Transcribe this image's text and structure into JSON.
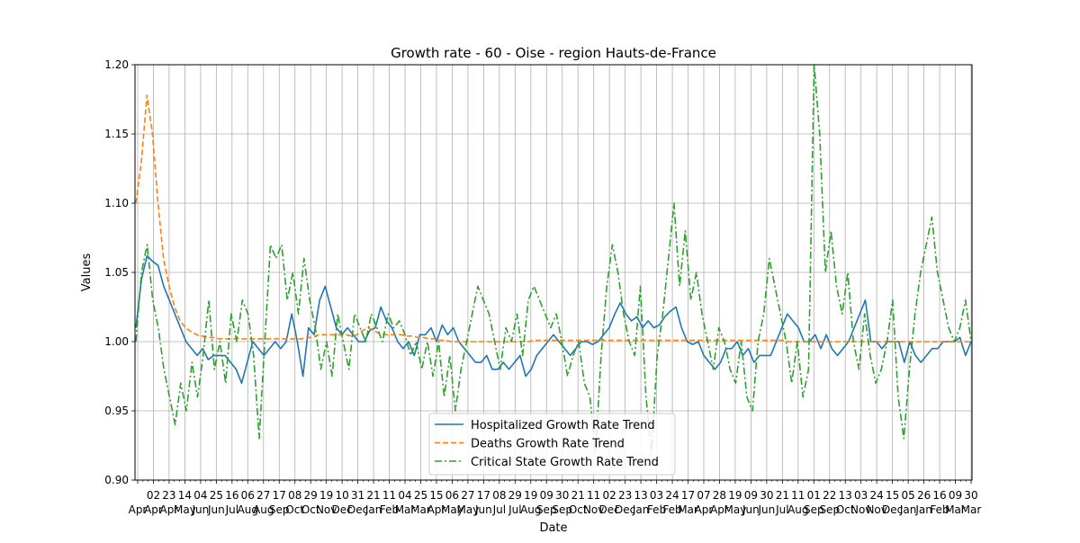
{
  "chart_data": {
    "type": "line",
    "title": "Growth rate - 60 - Oise - region Hauts-de-France",
    "xlabel": "Date",
    "ylabel": "Values",
    "ylim": [
      0.9,
      1.2
    ],
    "yticks": [
      "0.90",
      "0.95",
      "1.00",
      "1.05",
      "1.10",
      "1.15",
      "1.20"
    ],
    "grid": true,
    "legend_position": "bottom-center",
    "x_tick_labels": [
      {
        "day": "",
        "month": "Apr"
      },
      {
        "day": "02",
        "month": "Apr"
      },
      {
        "day": "23",
        "month": "Apr"
      },
      {
        "day": "14",
        "month": "May"
      },
      {
        "day": "04",
        "month": "Jun"
      },
      {
        "day": "25",
        "month": "Jun"
      },
      {
        "day": "16",
        "month": "Jul"
      },
      {
        "day": "06",
        "month": "Aug"
      },
      {
        "day": "27",
        "month": "Aug"
      },
      {
        "day": "17",
        "month": "Sep"
      },
      {
        "day": "08",
        "month": "Oct"
      },
      {
        "day": "29",
        "month": "Oct"
      },
      {
        "day": "19",
        "month": "Nov"
      },
      {
        "day": "10",
        "month": "Dec"
      },
      {
        "day": "31",
        "month": "Dec"
      },
      {
        "day": "21",
        "month": "Jan"
      },
      {
        "day": "11",
        "month": "Feb"
      },
      {
        "day": "04",
        "month": "Mar"
      },
      {
        "day": "25",
        "month": "Mar"
      },
      {
        "day": "15",
        "month": "Apr"
      },
      {
        "day": "06",
        "month": "May"
      },
      {
        "day": "27",
        "month": "May"
      },
      {
        "day": "17",
        "month": "Jun"
      },
      {
        "day": "08",
        "month": "Jul"
      },
      {
        "day": "29",
        "month": "Jul"
      },
      {
        "day": "19",
        "month": "Aug"
      },
      {
        "day": "09",
        "month": "Sep"
      },
      {
        "day": "30",
        "month": "Sep"
      },
      {
        "day": "21",
        "month": "Oct"
      },
      {
        "day": "11",
        "month": "Nov"
      },
      {
        "day": "02",
        "month": "Dec"
      },
      {
        "day": "23",
        "month": "Dec"
      },
      {
        "day": "13",
        "month": "Jan"
      },
      {
        "day": "03",
        "month": "Feb"
      },
      {
        "day": "24",
        "month": "Feb"
      },
      {
        "day": "17",
        "month": "Mar"
      },
      {
        "day": "07",
        "month": "Apr"
      },
      {
        "day": "28",
        "month": "Apr"
      },
      {
        "day": "19",
        "month": "May"
      },
      {
        "day": "09",
        "month": "Jun"
      },
      {
        "day": "30",
        "month": "Jun"
      },
      {
        "day": "21",
        "month": "Jul"
      },
      {
        "day": "11",
        "month": "Aug"
      },
      {
        "day": "01",
        "month": "Sep"
      },
      {
        "day": "22",
        "month": "Sep"
      },
      {
        "day": "13",
        "month": "Oct"
      },
      {
        "day": "03",
        "month": "Nov"
      },
      {
        "day": "24",
        "month": "Nov"
      },
      {
        "day": "15",
        "month": "Dec"
      },
      {
        "day": "05",
        "month": "Jan"
      },
      {
        "day": "26",
        "month": "Jan"
      },
      {
        "day": "16",
        "month": "Feb"
      },
      {
        "day": "09",
        "month": "Mar"
      },
      {
        "day": "30",
        "month": "Mar"
      }
    ],
    "series": [
      {
        "name": "Hospitalized Growth Rate Trend",
        "color": "#1f77b4",
        "style": "solid",
        "values": [
          1.01,
          1.045,
          1.062,
          1.058,
          1.055,
          1.04,
          1.03,
          1.02,
          1.01,
          1.0,
          0.995,
          0.99,
          0.995,
          0.987,
          0.99,
          0.99,
          0.99,
          0.985,
          0.98,
          0.97,
          0.985,
          1.0,
          0.995,
          0.99,
          0.995,
          1.0,
          0.995,
          1.0,
          1.02,
          1.0,
          0.975,
          1.01,
          1.005,
          1.03,
          1.04,
          1.025,
          1.01,
          1.005,
          1.01,
          1.005,
          1.0,
          1.0,
          1.008,
          1.01,
          1.025,
          1.015,
          1.01,
          1.0,
          0.995,
          1.0,
          0.99,
          1.005,
          1.005,
          1.01,
          1.0,
          1.012,
          1.005,
          1.01,
          1.0,
          0.995,
          0.99,
          0.985,
          0.985,
          0.99,
          0.98,
          0.98,
          0.985,
          0.98,
          0.985,
          0.99,
          0.975,
          0.98,
          0.99,
          0.995,
          1.0,
          1.005,
          1.0,
          0.995,
          0.99,
          0.995,
          1.0,
          1.0,
          0.998,
          1.0,
          1.005,
          1.01,
          1.02,
          1.028,
          1.02,
          1.015,
          1.018,
          1.01,
          1.015,
          1.01,
          1.012,
          1.018,
          1.022,
          1.025,
          1.01,
          1.0,
          0.998,
          1.0,
          0.99,
          0.985,
          0.98,
          0.985,
          0.995,
          0.995,
          1.0,
          0.99,
          0.995,
          0.985,
          0.99,
          0.99,
          0.99,
          1.0,
          1.01,
          1.02,
          1.015,
          1.01,
          1.0,
          1.0,
          1.005,
          0.995,
          1.005,
          0.995,
          0.99,
          0.995,
          1.0,
          1.01,
          1.02,
          1.03,
          1.0,
          1.0,
          0.995,
          1.0,
          1.0,
          1.0,
          0.985,
          1.0,
          0.99,
          0.985,
          0.99,
          0.995,
          0.995,
          1.0,
          1.0,
          1.0,
          1.003,
          0.99,
          1.0
        ]
      },
      {
        "name": "Deaths Growth Rate Trend",
        "color": "#ff7f0e",
        "style": "dashed",
        "values": [
          1.1,
          1.13,
          1.178,
          1.15,
          1.1,
          1.06,
          1.04,
          1.025,
          1.015,
          1.01,
          1.007,
          1.005,
          1.004,
          1.003,
          1.003,
          1.002,
          1.002,
          1.002,
          1.002,
          1.002,
          1.002,
          1.002,
          1.002,
          1.002,
          1.002,
          1.002,
          1.002,
          1.002,
          1.002,
          1.002,
          1.002,
          1.003,
          1.003,
          1.005,
          1.005,
          1.005,
          1.005,
          1.005,
          1.005,
          1.004,
          1.005,
          1.008,
          1.01,
          1.008,
          1.006,
          1.005,
          1.005,
          1.005,
          1.005,
          1.004,
          1.004,
          1.003,
          1.003,
          1.002,
          1.002,
          1.001,
          1.001,
          1.0,
          1.0,
          1.0,
          1.0,
          1.0,
          1.0,
          1.0,
          1.0,
          1.0,
          1.0,
          1.0,
          1.0,
          1.0,
          1.0,
          1.0,
          1.001,
          1.001,
          1.001,
          1.001,
          1.001,
          1.001,
          1.001,
          1.001,
          1.001,
          1.001,
          1.001,
          1.001,
          1.001,
          1.001,
          1.001,
          1.001,
          1.001,
          1.001,
          1.001,
          1.001,
          1.001,
          1.001,
          1.001,
          1.001,
          1.001,
          1.001,
          1.001,
          1.001,
          1.001,
          1.001,
          1.001,
          1.001,
          1.001,
          1.001,
          1.001,
          1.001,
          1.001,
          1.001,
          1.001,
          1.001,
          1.001,
          1.001,
          1.001,
          1.001,
          1.001,
          1.001,
          1.0,
          1.0,
          1.0,
          1.0,
          1.0,
          1.0,
          1.0,
          1.0,
          1.0,
          1.0,
          1.0,
          1.0,
          1.0,
          1.0,
          1.0,
          1.0,
          1.0,
          1.0,
          1.0,
          1.0,
          1.0,
          1.0,
          1.0,
          1.0,
          1.0,
          1.0,
          1.0,
          1.0,
          1.0,
          1.0,
          1.0,
          1.0,
          1.0,
          1.0
        ]
      },
      {
        "name": "Critical State Growth Rate Trend",
        "color": "#2ca02c",
        "style": "dashdot",
        "values": [
          1.0,
          1.05,
          1.07,
          1.03,
          1.01,
          0.98,
          0.96,
          0.94,
          0.97,
          0.95,
          0.985,
          0.96,
          0.99,
          1.03,
          0.98,
          1.0,
          0.97,
          1.02,
          1.0,
          1.03,
          1.02,
          0.99,
          0.93,
          1.0,
          1.07,
          1.06,
          1.07,
          1.03,
          1.05,
          1.02,
          1.06,
          1.03,
          1.01,
          0.98,
          1.0,
          0.975,
          1.02,
          1.0,
          0.98,
          1.02,
          1.01,
          1.0,
          1.02,
          1.01,
          1.0,
          1.02,
          1.01,
          1.015,
          1.005,
          0.99,
          1.0,
          0.98,
          1.0,
          0.975,
          1.0,
          0.96,
          0.99,
          0.95,
          0.98,
          1.0,
          1.02,
          1.04,
          1.03,
          1.02,
          1.0,
          0.98,
          1.01,
          1.0,
          1.02,
          0.99,
          1.03,
          1.04,
          1.03,
          1.02,
          1.01,
          1.02,
          1.0,
          0.975,
          0.99,
          1.0,
          0.97,
          0.96,
          0.92,
          0.99,
          1.04,
          1.07,
          1.05,
          1.02,
          1.0,
          0.99,
          1.04,
          0.96,
          0.92,
          0.99,
          1.02,
          1.06,
          1.1,
          1.04,
          1.08,
          1.03,
          1.05,
          1.02,
          1.0,
          0.98,
          1.01,
          1.0,
          0.98,
          0.97,
          1.0,
          0.96,
          0.95,
          1.0,
          1.02,
          1.06,
          1.04,
          1.02,
          1.0,
          0.97,
          1.0,
          0.96,
          0.98,
          1.2,
          1.15,
          1.05,
          1.08,
          1.04,
          1.02,
          1.05,
          1.0,
          0.98,
          1.02,
          0.99,
          0.97,
          0.98,
          1.0,
          1.03,
          0.96,
          0.93,
          0.98,
          1.02,
          1.05,
          1.07,
          1.09,
          1.05,
          1.03,
          1.01,
          1.0,
          1.01,
          1.03,
          1.0
        ]
      }
    ]
  }
}
